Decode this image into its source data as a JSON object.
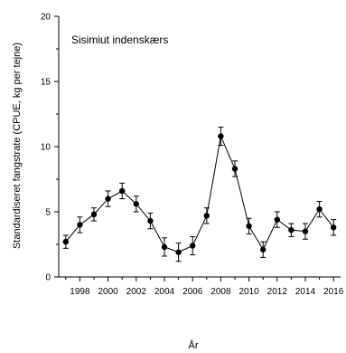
{
  "chart_data": {
    "type": "line",
    "title": "",
    "annotation": "Sisimiut indenskærs",
    "xlabel": "År",
    "ylabel": "Standardiseret fangstrate (CPUE, kg per tejne)",
    "xlim": [
      1996.5,
      2016.5
    ],
    "ylim": [
      0,
      20
    ],
    "x_ticks": [
      1998,
      2000,
      2002,
      2004,
      2006,
      2008,
      2010,
      2012,
      2014,
      2016
    ],
    "y_ticks": [
      0,
      5,
      10,
      15,
      20
    ],
    "grid": false,
    "legend": "none",
    "series": [
      {
        "x": [
          1997,
          1998,
          1999,
          2000,
          2001,
          2002,
          2003,
          2004,
          2005,
          2006,
          2007,
          2008,
          2009,
          2010,
          2011,
          2012,
          2013,
          2014,
          2015,
          2016
        ],
        "y": [
          2.7,
          4.0,
          4.8,
          6.0,
          6.6,
          5.6,
          4.3,
          2.3,
          1.9,
          2.4,
          4.7,
          10.8,
          8.3,
          3.9,
          2.1,
          4.4,
          3.6,
          3.5,
          5.2,
          3.8
        ],
        "error": [
          0.5,
          0.6,
          0.5,
          0.6,
          0.6,
          0.6,
          0.6,
          0.7,
          0.7,
          0.7,
          0.6,
          0.7,
          0.6,
          0.6,
          0.6,
          0.6,
          0.5,
          0.6,
          0.6,
          0.6
        ],
        "color": "#000000"
      }
    ]
  }
}
